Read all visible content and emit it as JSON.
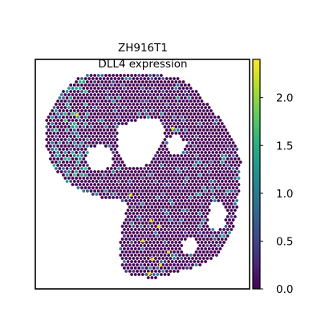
{
  "chart_data": {
    "type": "scatter",
    "title": "ZH916T1",
    "subtitle": "DLL4 expression",
    "xlabel": "",
    "ylabel": "",
    "colormap": "viridis",
    "colorbar": {
      "range": [
        0.0,
        2.4
      ],
      "ticks": [
        0.0,
        0.5,
        1.0,
        1.5,
        2.0
      ],
      "tick_labels": [
        "0.0",
        "0.5",
        "1.0",
        "1.5",
        "2.0"
      ]
    },
    "grid": false,
    "legend": "none",
    "description_values": {
      "background_value": 0.0,
      "max_value": 2.4
    }
  }
}
